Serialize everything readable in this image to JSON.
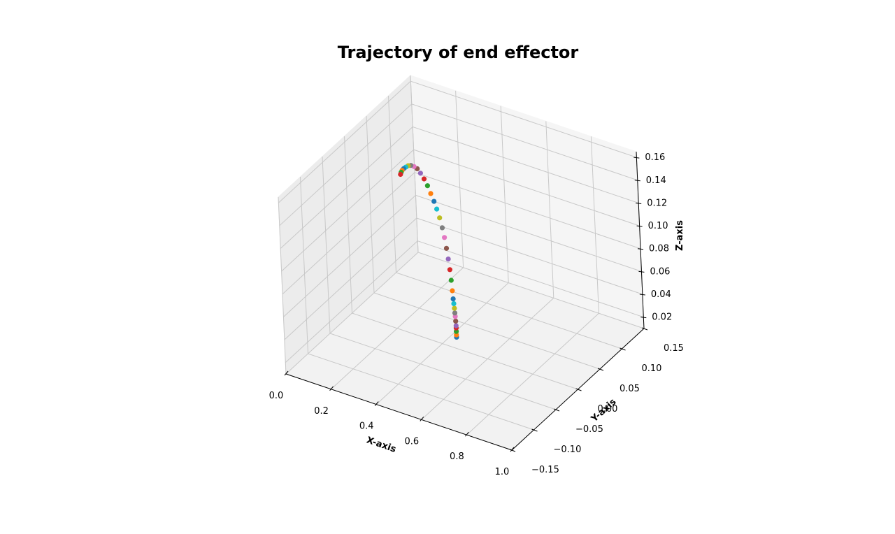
{
  "chart_data": {
    "type": "scatter",
    "projection": "3d",
    "title": "Trajectory of end effector",
    "xlabel": "X-axis",
    "ylabel": "Y-axis",
    "zlabel": "Z-axis",
    "xlim": [
      0.0,
      1.0
    ],
    "ylim": [
      -0.15,
      0.15
    ],
    "zlim": [
      0.01,
      0.165
    ],
    "x_ticks": [
      "0.0",
      "0.2",
      "0.4",
      "0.6",
      "0.8",
      "1.0"
    ],
    "y_ticks": [
      "−0.15",
      "−0.10",
      "−0.05",
      "0.00",
      "0.05",
      "0.10",
      "0.15"
    ],
    "z_ticks": [
      "0.02",
      "0.04",
      "0.06",
      "0.08",
      "0.10",
      "0.12",
      "0.14",
      "0.16"
    ],
    "grid": true,
    "marker_colors": [
      "#1f77b4",
      "#ff7f0e",
      "#2ca02c",
      "#d62728",
      "#9467bd",
      "#8c564b",
      "#e377c2",
      "#7f7f7f",
      "#bcbd22",
      "#17becf"
    ],
    "points": {
      "x": [
        0.465,
        0.465,
        0.465,
        0.465,
        0.465,
        0.464,
        0.463,
        0.462,
        0.461,
        0.459,
        0.457,
        0.455,
        0.452,
        0.448,
        0.443,
        0.437,
        0.43,
        0.422,
        0.412,
        0.401,
        0.39,
        0.377,
        0.364,
        0.35,
        0.335,
        0.321,
        0.307,
        0.293,
        0.281,
        0.27,
        0.26,
        0.253,
        0.248,
        0.245
      ],
      "y": [
        0.0,
        0.0,
        0.0,
        0.0,
        0.0,
        0.0,
        0.0,
        0.0,
        0.0,
        0.0,
        0.0,
        0.0,
        0.0,
        0.0,
        0.0,
        0.0,
        0.0,
        0.0,
        0.0,
        0.0,
        0.0,
        0.0,
        0.0,
        0.0,
        0.0,
        0.0,
        0.0,
        0.0,
        0.0,
        0.0,
        0.0,
        0.0,
        0.0,
        0.0
      ],
      "z": [
        0.02,
        0.022,
        0.025,
        0.028,
        0.03,
        0.034,
        0.038,
        0.041,
        0.045,
        0.049,
        0.053,
        0.06,
        0.069,
        0.078,
        0.087,
        0.096,
        0.105,
        0.113,
        0.121,
        0.128,
        0.134,
        0.14,
        0.146,
        0.151,
        0.155,
        0.158,
        0.159,
        0.159,
        0.158,
        0.156,
        0.154,
        0.152,
        0.15,
        0.148
      ]
    }
  }
}
